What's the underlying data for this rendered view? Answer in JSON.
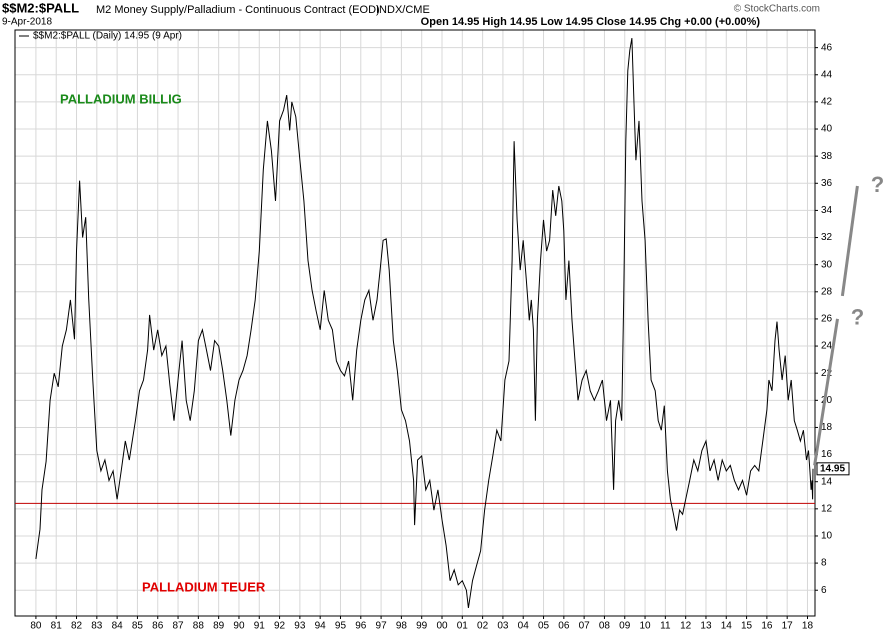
{
  "chart_data": {
    "type": "line",
    "symbol": "$$M2:$PALL",
    "title": "M2 Money Supply/Palladium - Continuous Contract (EOD)",
    "exchange": "INDX/CME",
    "date": "9-Apr-2018",
    "ohlc": "Open 14.95 High 14.95 Low 14.95 Close 14.95 Chg +0.00 (+0.00%)",
    "copyright": "© StockCharts.com",
    "annotations": [
      "PALLADIUM BILLIG",
      "PALLADIUM TEUER",
      "?",
      "?"
    ],
    "annotation_colors": [
      "#1a8a1a",
      "#e00000",
      "#888888",
      "#888888"
    ],
    "hline": 12.4,
    "hline_color": "#c00000",
    "projections": [
      {
        "x": [
          2018.35,
          2019.48
        ],
        "values": [
          15.2,
          26
        ],
        "color": "#888888"
      },
      {
        "x": [
          2019.72,
          2020.46
        ],
        "values": [
          27.7,
          35.8
        ],
        "color": "#888888"
      }
    ],
    "x": [
      1980.0,
      1980.2,
      1980.3,
      1980.5,
      1980.7,
      1980.9,
      1981.1,
      1981.3,
      1981.5,
      1981.7,
      1981.9,
      1982.0,
      1982.15,
      1982.3,
      1982.45,
      1982.6,
      1982.8,
      1983.0,
      1983.2,
      1983.4,
      1983.6,
      1983.8,
      1984.0,
      1984.2,
      1984.4,
      1984.6,
      1984.9,
      1985.1,
      1985.3,
      1985.5,
      1985.6,
      1985.8,
      1986.0,
      1986.2,
      1986.4,
      1986.6,
      1986.8,
      1987.0,
      1987.2,
      1987.4,
      1987.6,
      1987.8,
      1988.0,
      1988.2,
      1988.4,
      1988.6,
      1988.8,
      1989.0,
      1989.2,
      1989.4,
      1989.6,
      1989.8,
      1990.0,
      1990.2,
      1990.4,
      1990.6,
      1990.8,
      1991.0,
      1991.2,
      1991.4,
      1991.6,
      1991.8,
      1992.0,
      1992.2,
      1992.35,
      1992.5,
      1992.6,
      1992.8,
      1993.0,
      1993.2,
      1993.4,
      1993.6,
      1993.8,
      1994.0,
      1994.2,
      1994.4,
      1994.6,
      1994.8,
      1995.0,
      1995.2,
      1995.4,
      1995.6,
      1995.8,
      1996.0,
      1996.2,
      1996.4,
      1996.6,
      1996.8,
      1996.95,
      1997.1,
      1997.25,
      1997.4,
      1997.6,
      1997.8,
      1998.0,
      1998.2,
      1998.4,
      1998.6,
      1998.65,
      1998.8,
      1999.0,
      1999.2,
      1999.4,
      1999.6,
      1999.8,
      2000.0,
      2000.2,
      2000.4,
      2000.6,
      2000.8,
      2001.0,
      2001.2,
      2001.3,
      2001.5,
      2001.7,
      2001.9,
      2002.1,
      2002.3,
      2002.5,
      2002.7,
      2002.9,
      2003.1,
      2003.3,
      2003.45,
      2003.55,
      2003.7,
      2003.85,
      2004.0,
      2004.15,
      2004.3,
      2004.4,
      2004.5,
      2004.6,
      2004.7,
      2004.85,
      2005.0,
      2005.15,
      2005.3,
      2005.45,
      2005.6,
      2005.75,
      2005.9,
      2006.0,
      2006.1,
      2006.25,
      2006.4,
      2006.55,
      2006.7,
      2006.9,
      2007.1,
      2007.3,
      2007.5,
      2007.7,
      2007.9,
      2008.1,
      2008.3,
      2008.45,
      2008.55,
      2008.7,
      2008.85,
      2008.95,
      2009.05,
      2009.15,
      2009.25,
      2009.35,
      2009.45,
      2009.55,
      2009.7,
      2009.85,
      2010.0,
      2010.15,
      2010.3,
      2010.5,
      2010.65,
      2010.8,
      2010.95,
      2011.1,
      2011.25,
      2011.4,
      2011.55,
      2011.7,
      2011.85,
      2012.0,
      2012.2,
      2012.4,
      2012.6,
      2012.8,
      2013.0,
      2013.2,
      2013.4,
      2013.6,
      2013.8,
      2014.0,
      2014.2,
      2014.4,
      2014.6,
      2014.8,
      2015.0,
      2015.2,
      2015.4,
      2015.6,
      2015.8,
      2016.0,
      2016.1,
      2016.25,
      2016.4,
      2016.5,
      2016.6,
      2016.75,
      2016.9,
      2017.05,
      2017.2,
      2017.35,
      2017.5,
      2017.65,
      2017.8,
      2017.95,
      2018.05,
      2018.12,
      2018.18,
      2018.22,
      2018.25,
      2018.27
    ],
    "series": [
      {
        "name": "$$M2:$PALL (Daily) 14.95 (9 Apr)",
        "color": "#000000",
        "values": [
          8.3,
          10.5,
          13.4,
          15.5,
          20,
          22,
          21,
          24,
          25.2,
          27.4,
          24.5,
          31,
          36.2,
          32,
          33.5,
          27.5,
          21.5,
          16.3,
          14.8,
          15.6,
          14.1,
          14.8,
          12.7,
          14.8,
          17,
          15.6,
          18.5,
          20.7,
          21.5,
          23.7,
          26.3,
          23.7,
          25.2,
          23.3,
          24,
          21.1,
          18.5,
          21.5,
          24.4,
          20,
          18.5,
          20.7,
          24.4,
          25.2,
          23.7,
          22.2,
          24.4,
          24,
          22.2,
          20,
          17.4,
          20,
          21.5,
          22.2,
          23.3,
          25.2,
          27.4,
          31,
          37,
          40.6,
          38.4,
          34.7,
          40.6,
          41.4,
          42.5,
          39.9,
          42,
          40.9,
          37.7,
          34.7,
          30.3,
          28.1,
          26.6,
          25.2,
          28.1,
          25.9,
          25.2,
          22.9,
          22.2,
          21.8,
          22.9,
          20,
          23.7,
          25.9,
          27.4,
          28.1,
          25.9,
          27.4,
          29.6,
          31.8,
          31.9,
          29.6,
          24.4,
          22.2,
          19.3,
          18.5,
          17,
          14.1,
          10.8,
          15.6,
          15.9,
          13.4,
          14.1,
          11.9,
          13.4,
          11.2,
          9.3,
          6.7,
          7.5,
          6.4,
          6.7,
          6,
          4.7,
          6.7,
          7.8,
          8.9,
          11.9,
          14.1,
          15.9,
          17.8,
          17,
          21.5,
          22.9,
          30.3,
          39.1,
          33.3,
          29.6,
          31.8,
          28.9,
          25.9,
          27.4,
          25.2,
          18.5,
          25.9,
          30.3,
          33.3,
          31,
          31.8,
          35.5,
          33.6,
          35.8,
          34.7,
          32.5,
          27.4,
          30.3,
          25.9,
          22.9,
          20,
          21.5,
          22.2,
          20.7,
          20,
          20.7,
          21.5,
          18.5,
          20,
          13.4,
          18.5,
          20,
          18.5,
          27.4,
          39.1,
          44.3,
          45.8,
          46.7,
          42.1,
          37.7,
          40.6,
          34.7,
          31.8,
          25.9,
          21.5,
          20.7,
          18.5,
          17.8,
          19.6,
          14.8,
          12.7,
          11.6,
          10.4,
          11.9,
          11.6,
          12.7,
          14.1,
          15.6,
          14.8,
          16.3,
          17,
          14.8,
          15.6,
          14.1,
          15.6,
          14.8,
          15.2,
          14.1,
          13.4,
          14.1,
          13,
          14.8,
          15.2,
          14.8,
          17,
          19.3,
          21.5,
          20.7,
          24.4,
          25.8,
          23.7,
          21.5,
          23.3,
          20,
          21.5,
          18.5,
          17.8,
          17,
          17.8,
          15.6,
          16.3,
          14.8,
          13.4,
          14.1,
          12.7,
          14.95
        ]
      }
    ],
    "xlim": [
      1978.97,
      2018.37
    ],
    "ylim": [
      4.1,
      47.3
    ],
    "yticks": [
      6,
      8,
      10,
      12,
      14,
      16,
      18,
      20,
      22,
      24,
      26,
      28,
      30,
      32,
      34,
      36,
      38,
      40,
      42,
      44,
      46
    ],
    "xticks": [
      {
        "value": 1980,
        "label": "80"
      },
      {
        "value": 1981,
        "label": "81"
      },
      {
        "value": 1982,
        "label": "82"
      },
      {
        "value": 1983,
        "label": "83"
      },
      {
        "value": 1984,
        "label": "84"
      },
      {
        "value": 1985,
        "label": "85"
      },
      {
        "value": 1986,
        "label": "86"
      },
      {
        "value": 1987,
        "label": "87"
      },
      {
        "value": 1988,
        "label": "88"
      },
      {
        "value": 1989,
        "label": "89"
      },
      {
        "value": 1990,
        "label": "90"
      },
      {
        "value": 1991,
        "label": "91"
      },
      {
        "value": 1992,
        "label": "92"
      },
      {
        "value": 1993,
        "label": "93"
      },
      {
        "value": 1994,
        "label": "94"
      },
      {
        "value": 1995,
        "label": "95"
      },
      {
        "value": 1996,
        "label": "96"
      },
      {
        "value": 1997,
        "label": "97"
      },
      {
        "value": 1998,
        "label": "98"
      },
      {
        "value": 1999,
        "label": "99"
      },
      {
        "value": 2000,
        "label": "00"
      },
      {
        "value": 2001,
        "label": "01"
      },
      {
        "value": 2002,
        "label": "02"
      },
      {
        "value": 2003,
        "label": "03"
      },
      {
        "value": 2004,
        "label": "04"
      },
      {
        "value": 2005,
        "label": "05"
      },
      {
        "value": 2006,
        "label": "06"
      },
      {
        "value": 2007,
        "label": "07"
      },
      {
        "value": 2008,
        "label": "08"
      },
      {
        "value": 2009,
        "label": "09"
      },
      {
        "value": 2010,
        "label": "10"
      },
      {
        "value": 2011,
        "label": "11"
      },
      {
        "value": 2012,
        "label": "12"
      },
      {
        "value": 2013,
        "label": "13"
      },
      {
        "value": 2014,
        "label": "14"
      },
      {
        "value": 2015,
        "label": "15"
      },
      {
        "value": 2016,
        "label": "16"
      },
      {
        "value": 2017,
        "label": "17"
      },
      {
        "value": 2018,
        "label": "18"
      }
    ],
    "grid": true
  }
}
